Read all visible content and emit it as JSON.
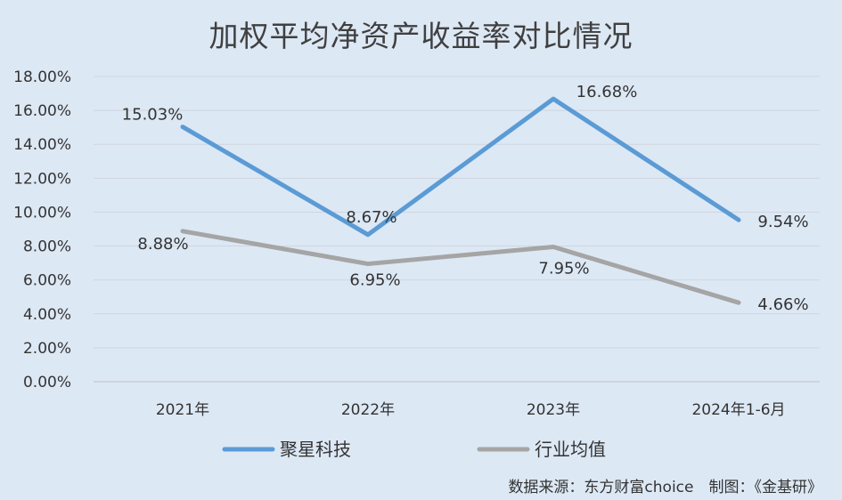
{
  "chart_data": {
    "type": "line",
    "title": "加权平均净资产收益率对比情况",
    "categories": [
      "2021年",
      "2022年",
      "2023年",
      "2024年1-6月"
    ],
    "series": [
      {
        "name": "聚星科技",
        "color": "#5b9bd5",
        "values": [
          15.03,
          8.67,
          16.68,
          9.54
        ],
        "labels": [
          "15.03%",
          "8.67%",
          "16.68%",
          "9.54%"
        ]
      },
      {
        "name": "行业均值",
        "color": "#a5a5a5",
        "values": [
          8.88,
          6.95,
          7.95,
          4.66
        ],
        "labels": [
          "8.88%",
          "6.95%",
          "7.95%",
          "4.66%"
        ]
      }
    ],
    "ylim": [
      0,
      18
    ],
    "ystep": 2,
    "ytick_labels": [
      "0.00%",
      "2.00%",
      "4.00%",
      "6.00%",
      "8.00%",
      "10.00%",
      "12.00%",
      "14.00%",
      "16.00%",
      "18.00%"
    ],
    "grid": true,
    "legend": "bottom"
  },
  "source": "数据来源：东方财富choice　制图：《金基研》"
}
